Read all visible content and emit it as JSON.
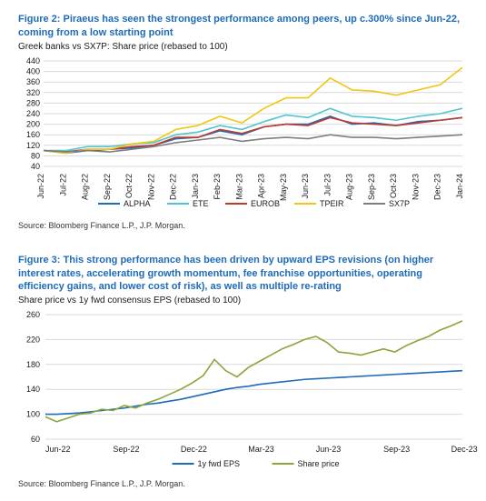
{
  "figure2": {
    "title": "Figure 2: Piraeus has seen the strongest performance among peers, up c.300% since Jun-22, coming from a low starting point",
    "subtitle": "Greek banks vs SX7P: Share price (rebased to 100)",
    "source": "Source: Bloomberg Finance L.P., J.P. Morgan.",
    "type": "line",
    "background_color": "#ffffff",
    "grid_color": "#d9d9d9",
    "title_color": "#1e6bb8",
    "ylim": [
      40,
      440
    ],
    "ytick_step": 40,
    "x_labels": [
      "Jun-22",
      "Jul-22",
      "Aug-22",
      "Sep-22",
      "Oct-22",
      "Nov-22",
      "Dec-22",
      "Jan-23",
      "Feb-23",
      "Mar-23",
      "Apr-23",
      "May-23",
      "Jun-23",
      "Jul-23",
      "Aug-23",
      "Sep-23",
      "Oct-23",
      "Nov-23",
      "Dec-23",
      "Jan-24"
    ],
    "series": [
      {
        "name": "ALPHA",
        "color": "#1e6bb8",
        "width": 1.6,
        "values": [
          100,
          90,
          100,
          105,
          110,
          120,
          145,
          150,
          175,
          160,
          190,
          200,
          200,
          230,
          200,
          205,
          195,
          210,
          215,
          225
        ]
      },
      {
        "name": "ETE",
        "color": "#51c5cf",
        "width": 1.6,
        "values": [
          100,
          100,
          115,
          115,
          125,
          130,
          160,
          170,
          195,
          180,
          210,
          235,
          225,
          260,
          230,
          225,
          215,
          230,
          240,
          260
        ]
      },
      {
        "name": "EUROB",
        "color": "#c0392b",
        "width": 1.6,
        "values": [
          100,
          95,
          105,
          105,
          115,
          120,
          150,
          150,
          180,
          165,
          190,
          200,
          195,
          225,
          205,
          200,
          195,
          205,
          215,
          225
        ]
      },
      {
        "name": "TPEIR",
        "color": "#f2c612",
        "width": 1.6,
        "values": [
          100,
          90,
          105,
          105,
          125,
          135,
          180,
          195,
          230,
          205,
          260,
          300,
          300,
          375,
          330,
          325,
          310,
          330,
          350,
          415
        ]
      },
      {
        "name": "SX7P",
        "color": "#7f7f7f",
        "width": 1.6,
        "values": [
          100,
          95,
          100,
          95,
          105,
          115,
          130,
          140,
          150,
          135,
          145,
          150,
          145,
          160,
          150,
          150,
          145,
          150,
          155,
          160
        ]
      }
    ]
  },
  "figure3": {
    "title": "Figure 3: This strong performance has been driven by upward EPS revisions (on higher interest rates, accelerating growth momentum, fee franchise opportunities, operating efficiency gains, and lower cost of risk), as well as multiple re-rating",
    "subtitle": "Share price vs 1y fwd consensus EPS (rebased to 100)",
    "source": "Source: Bloomberg Finance L.P., J.P. Morgan.",
    "type": "line",
    "background_color": "#ffffff",
    "grid_color": "#d9d9d9",
    "title_color": "#1e6bb8",
    "ylim": [
      60,
      260
    ],
    "ytick_step": 40,
    "x_labels": [
      "Jun-22",
      "Sep-22",
      "Dec-22",
      "Mar-23",
      "Jun-23",
      "Sep-23",
      "Dec-23"
    ],
    "points_per_segment": 6,
    "series": [
      {
        "name": "1y fwd EPS",
        "color": "#1e6bb8",
        "width": 1.6,
        "values": [
          100,
          100,
          101,
          102,
          104,
          106,
          108,
          110,
          113,
          116,
          118,
          121,
          124,
          128,
          132,
          136,
          140,
          143,
          145,
          148,
          150,
          152,
          154,
          156,
          157,
          158,
          159,
          160,
          161,
          162,
          163,
          164,
          165,
          166,
          167,
          168,
          169,
          170
        ]
      },
      {
        "name": "Share price",
        "color": "#8aa63a",
        "width": 1.6,
        "values": [
          96,
          88,
          94,
          100,
          102,
          108,
          106,
          114,
          110,
          118,
          124,
          132,
          140,
          150,
          162,
          188,
          170,
          160,
          175,
          185,
          195,
          205,
          212,
          220,
          225,
          215,
          200,
          198,
          195,
          200,
          205,
          200,
          210,
          218,
          225,
          235,
          242,
          250
        ]
      }
    ]
  }
}
